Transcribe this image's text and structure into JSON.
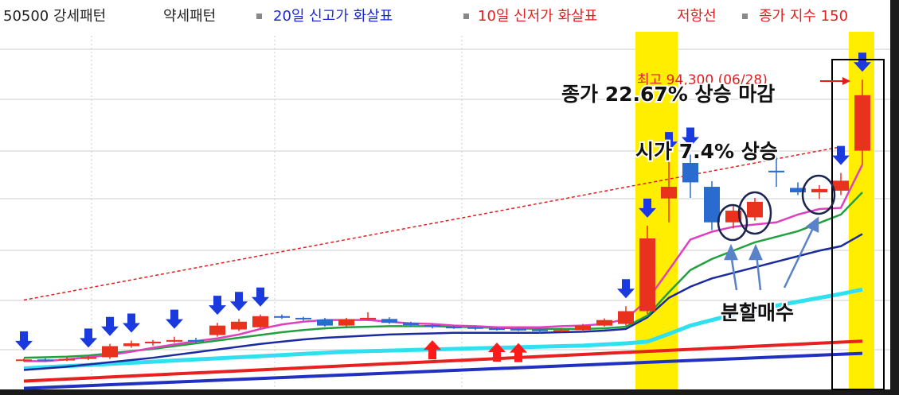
{
  "chart_data": {
    "type": "candlestick",
    "legend": {
      "bull": "50500 강세패턴",
      "bear": "약세패턴",
      "high_arrow": "20일 신고가 화살표",
      "low_arrow": "10일 신저가 화살표",
      "resistance": "저항선",
      "index": "종가 지수 150"
    },
    "annotations": {
      "peak": "최고 94,300 (06/28)",
      "close_note": "종가 22.67% 상승 마감",
      "open_note": "시가 7.4% 상승",
      "buy_note": "분할매수"
    },
    "ylim": [
      38500,
      106500
    ],
    "up_color": "#e8321e",
    "down_color": "#2a6bd0",
    "open": [
      43800,
      43900,
      43800,
      44000,
      44300,
      46300,
      46800,
      47100,
      47400,
      48300,
      49300,
      49700,
      51700,
      51400,
      51100,
      50000,
      51100,
      51200,
      50500,
      50100,
      49800,
      49700,
      49500,
      49400,
      49300,
      49000,
      49200,
      50000,
      50300,
      52600,
      72900,
      79300,
      75000,
      68600,
      69500,
      77900,
      74800,
      74000,
      74300,
      81500
    ],
    "close": [
      43900,
      43800,
      44000,
      44300,
      46300,
      46800,
      47100,
      47400,
      47200,
      50000,
      50700,
      51700,
      51500,
      51200,
      50000,
      51100,
      51400,
      50500,
      50100,
      49800,
      49700,
      49500,
      49400,
      49300,
      49000,
      49200,
      50000,
      51000,
      52600,
      65700,
      75000,
      75800,
      68600,
      70700,
      72300,
      77600,
      74000,
      74600,
      76100,
      91500
    ],
    "high": [
      44100,
      44100,
      44300,
      44600,
      46700,
      47300,
      47400,
      48000,
      47800,
      50500,
      51200,
      52000,
      52000,
      51600,
      51400,
      51400,
      52400,
      51500,
      50700,
      50300,
      50000,
      49900,
      49700,
      49600,
      49500,
      49600,
      50300,
      51300,
      53500,
      68000,
      80000,
      80800,
      76000,
      71500,
      73000,
      80500,
      75800,
      75300,
      77500,
      94300
    ],
    "low": [
      43500,
      43500,
      43600,
      43800,
      44000,
      46000,
      46400,
      46900,
      46800,
      48000,
      49000,
      49500,
      51200,
      50900,
      49800,
      49800,
      50900,
      50300,
      49800,
      49500,
      49400,
      49200,
      49100,
      49000,
      48600,
      48800,
      48900,
      49800,
      50000,
      52100,
      68600,
      73000,
      67200,
      67500,
      68900,
      75000,
      73500,
      72800,
      73500,
      79000
    ],
    "series": [
      {
        "color": "#e040c0",
        "values": [
          43600,
          43600,
          43900,
          44300,
          44700,
          45300,
          46000,
          46600,
          47200,
          47700,
          48400,
          49400,
          50200,
          50700,
          51000,
          51000,
          51000,
          50700,
          50400,
          50300,
          50000,
          49900,
          49700,
          49700,
          49700,
          49900,
          50000,
          50300,
          51200,
          54600,
          60000,
          65500,
          66900,
          67800,
          68200,
          68600,
          70000,
          71000,
          71200,
          79000
        ]
      },
      {
        "color": "#22a040",
        "values": [
          44200,
          44300,
          44400,
          44600,
          45000,
          45400,
          45800,
          46300,
          46800,
          47300,
          47800,
          48300,
          48800,
          49200,
          49500,
          49700,
          49800,
          49900,
          49900,
          49900,
          49800,
          49700,
          49600,
          49500,
          49400,
          49400,
          49400,
          49500,
          49800,
          51800,
          56000,
          60000,
          62000,
          63500,
          65000,
          66000,
          67000,
          68500,
          70000,
          74000
        ]
      },
      {
        "color": "#1a2aa0",
        "values": [
          42000,
          42300,
          42600,
          43000,
          43400,
          43800,
          44200,
          44700,
          45200,
          45700,
          46200,
          46700,
          47100,
          47500,
          47800,
          48000,
          48200,
          48400,
          48500,
          48600,
          48700,
          48700,
          48700,
          48700,
          48700,
          48800,
          48900,
          49100,
          49400,
          51500,
          55000,
          57000,
          58500,
          59500,
          60500,
          61500,
          62500,
          63500,
          64300,
          66500
        ]
      },
      {
        "color": "#30e0f0",
        "values": [
          42300,
          42500,
          42700,
          42900,
          43100,
          43300,
          43500,
          43700,
          43900,
          44100,
          44300,
          44500,
          44700,
          44900,
          45100,
          45300,
          45400,
          45500,
          45600,
          45700,
          45800,
          45900,
          46000,
          46100,
          46200,
          46300,
          46400,
          46600,
          46800,
          47100,
          48500,
          50000,
          51000,
          52000,
          52800,
          53600,
          54300,
          55000,
          55700,
          56500
        ]
      }
    ],
    "lines": [
      {
        "color": "#e02020",
        "dashed": true,
        "from": [
          0,
          54600
        ],
        "to": [
          38,
          82200
        ]
      },
      {
        "color": "#e82020",
        "dashed": false,
        "from": [
          0,
          40000
        ],
        "to": [
          39,
          47200
        ]
      },
      {
        "color": "#2030c0",
        "dashed": false,
        "from": [
          0,
          38700
        ],
        "to": [
          39,
          45000
        ]
      }
    ],
    "signals": {
      "down": [
        0,
        3,
        4,
        5,
        7,
        9,
        10,
        11,
        28,
        29,
        30,
        31,
        38,
        39
      ],
      "up": [
        19,
        22,
        23
      ]
    }
  }
}
